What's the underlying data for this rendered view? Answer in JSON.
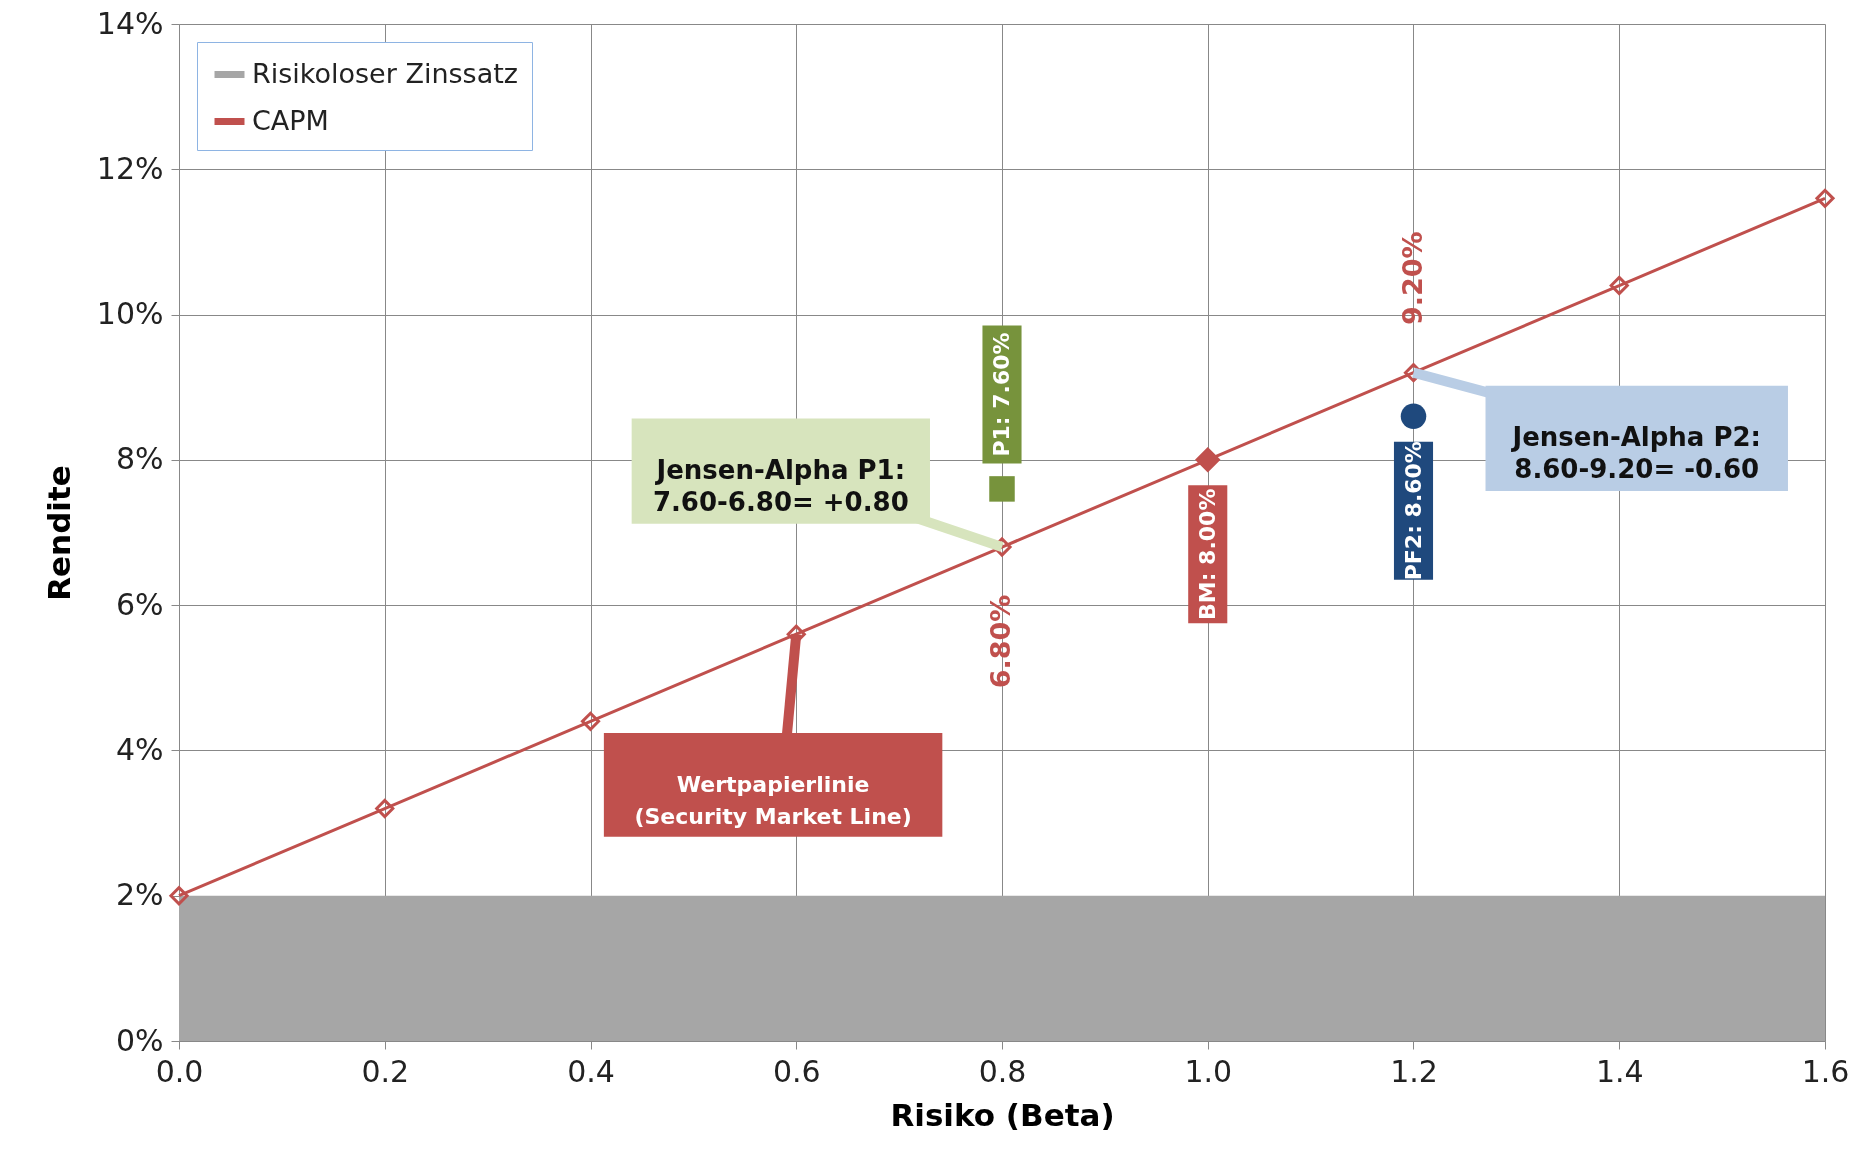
{
  "chart_data": {
    "type": "line",
    "xlabel": "Risiko (Beta)",
    "ylabel": "Rendite",
    "xlim": [
      0,
      1.6
    ],
    "ylim": [
      0,
      14
    ],
    "xticks": [
      {
        "value": 0,
        "label": "0.0"
      },
      0.2,
      0.4,
      0.6,
      0.8,
      {
        "value": 1,
        "label": "1.0"
      },
      1.2,
      1.4,
      1.6
    ],
    "yticks": [
      {
        "value": 0,
        "label": "0%"
      },
      {
        "value": 2,
        "label": "2%"
      },
      {
        "value": 4,
        "label": "4%"
      },
      {
        "value": 6,
        "label": "6%"
      },
      {
        "value": 8,
        "label": "8%"
      },
      {
        "value": 10,
        "label": "10%"
      },
      {
        "value": 12,
        "label": "12%"
      },
      {
        "value": 14,
        "label": "14%"
      }
    ],
    "grid": true,
    "legend": "top left",
    "series": [
      {
        "name": "Risikoloser Zinssatz",
        "type": "area",
        "color": "#a6a6a6",
        "x": [
          0,
          1.6
        ],
        "values": [
          2,
          2
        ]
      },
      {
        "name": "CAPM",
        "color": "#c0504d",
        "marker": "diamond",
        "x": [
          0,
          0.2,
          0.4,
          0.6,
          0.8,
          1.0,
          1.2,
          1.4,
          1.6
        ],
        "values": [
          2,
          3.2,
          4.4,
          5.6,
          6.8,
          8.0,
          9.2,
          10.4,
          11.6
        ],
        "value_labels": [
          null,
          null,
          null,
          null,
          "6.80%",
          null,
          "9.20%",
          null,
          null
        ]
      },
      {
        "type": "scatter",
        "color": "#77933c",
        "marker": "square",
        "x": [
          0.8
        ],
        "values": [
          7.6
        ],
        "value_labels": [
          "P1: 7.60%"
        ]
      },
      {
        "type": "scatter",
        "color": "#c0504d",
        "marker": "diamond",
        "x": [
          1.0
        ],
        "values": [
          8.0
        ],
        "value_labels": [
          "BM: 8.00%"
        ]
      },
      {
        "type": "scatter",
        "color": "#1f497d",
        "marker": "circle",
        "x": [
          1.2
        ],
        "values": [
          8.6
        ],
        "value_labels": [
          "PF2: 8.60%"
        ]
      }
    ],
    "annotations": [
      {
        "text": "Jensen-Alpha P1:\n7.60-6.80= +0.80",
        "x": 0.8,
        "y": 6.8
      },
      {
        "text": "Jensen-Alpha P2:\n8.60-9.20= -0.60",
        "x": 1.2,
        "y": 9.2
      },
      {
        "text": "Wertpapierlinie\n(Security Market Line)",
        "x": 0.6,
        "y": 5.6
      }
    ]
  }
}
